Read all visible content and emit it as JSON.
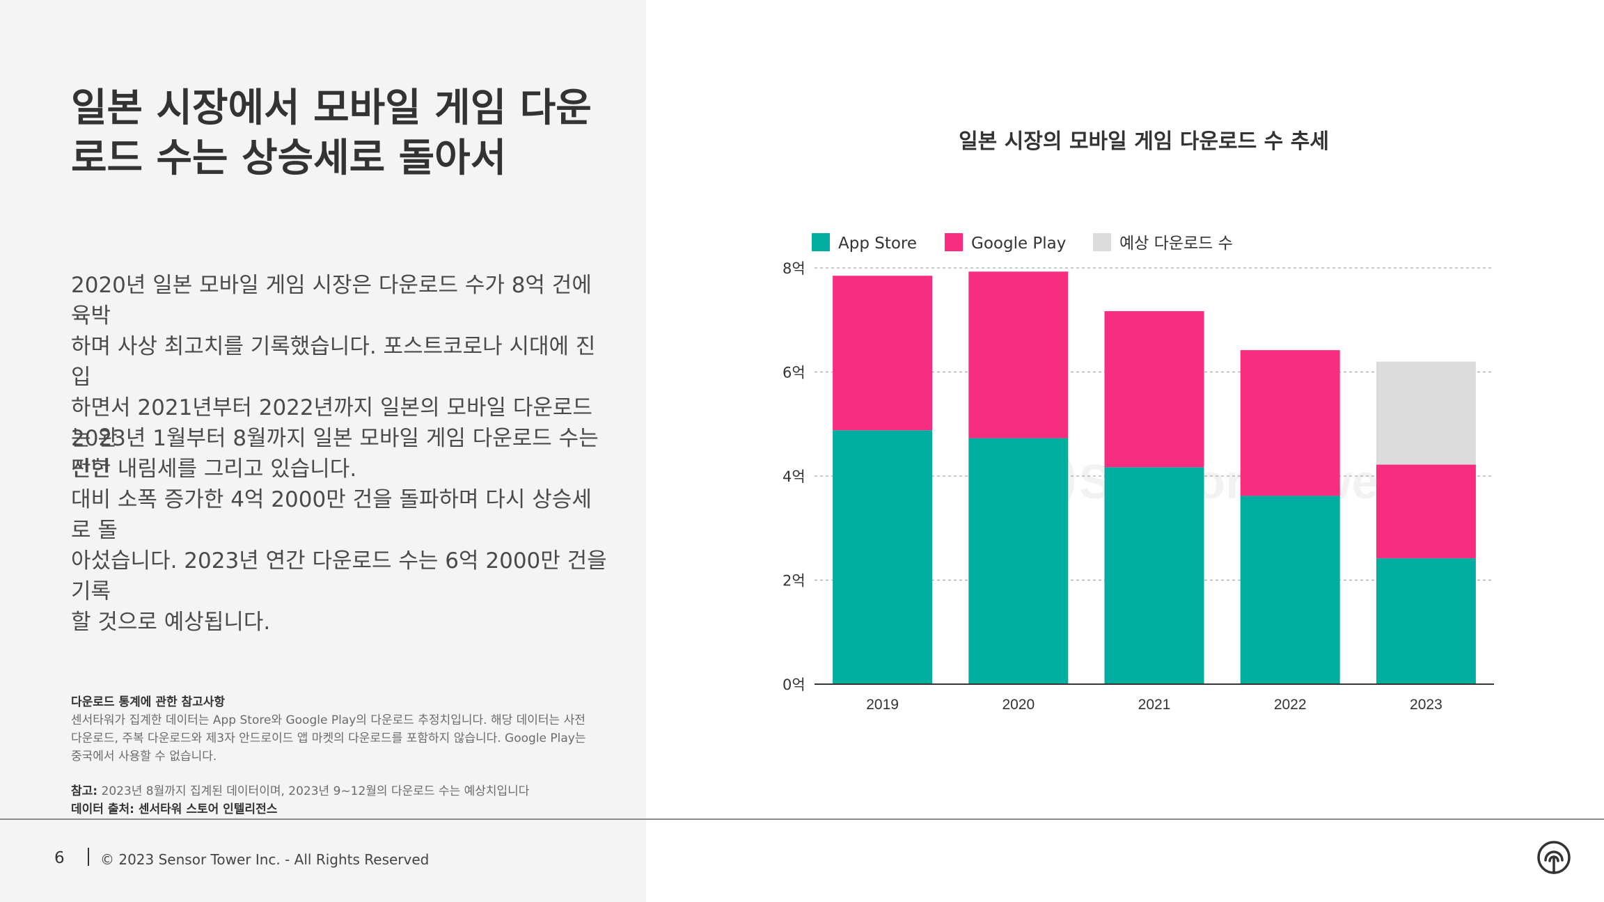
{
  "header": {
    "title_line1": "일본 시장에서 모바일 게임 다운",
    "title_line2": "로드 수는 상승세로 돌아서"
  },
  "body": {
    "para1_lines": [
      "2020년 일본 모바일 게임 시장은 다운로드 수가 8억 건에 육박",
      "하며 사상 최고치를 기록했습니다. 포스트코로나 시대에 진입",
      "하면서 2021년부터 2022년까지 일본의 모바일 다운로드는 완",
      "만한 내림세를 그리고 있습니다."
    ],
    "para2_lines": [
      "2023년 1월부터 8월까지 일본 모바일 게임 다운로드 수는 전년",
      "대비 소폭 증가한 4억 2000만 건을 돌파하며 다시 상승세로 돌",
      "아섰습니다. 2023년 연간 다운로드 수는 6억 2000만 건을 기록",
      "할 것으로 예상됩니다."
    ]
  },
  "notes": {
    "heading": "다운로드 통계에 관한 참고사항",
    "lines": [
      "센서타워가 집계한 데이터는 App Store와 Google Play의 다운로드 추정치입니다. 해당 데이터는 사전",
      "다운로드, 주복 다운로드와 제3자 안드로이드 앱 마켓의 다운로드를 포함하지 않습니다. Google Play는",
      "중국에서 사용할 수 없습니다."
    ],
    "ref_label": "참고:",
    "ref_text": " 2023년 8월까지 집계된 데이터이며, 2023년 9~12월의 다운로드 수는 예상치입니다",
    "source_label": "데이터 출처: 센서타워 스토어 인텔리전스"
  },
  "footer": {
    "page_number": "6",
    "copyright": "© 2023 Sensor Tower Inc. - All Rights Reserved"
  },
  "watermark": "Sensor Tower",
  "colors": {
    "app_store": "#00ad9f",
    "google_play": "#f72d7f",
    "forecast": "#dcdcdc",
    "left_panel": "#f4f4f4",
    "text_dark": "#333333"
  },
  "icons": [
    "sensor-tower-logo-icon"
  ],
  "chart_data": {
    "type": "bar",
    "stacked": true,
    "title": "일본 시장의 모바일 게임 다운로드 수 추세",
    "categories": [
      "2019",
      "2020",
      "2021",
      "2022",
      "2023"
    ],
    "series": [
      {
        "name": "App Store",
        "color": "#00ad9f",
        "values": [
          4.88,
          4.73,
          4.17,
          3.62,
          2.42
        ]
      },
      {
        "name": "Google Play",
        "color": "#f72d7f",
        "values": [
          2.97,
          3.2,
          3.0,
          2.8,
          1.8
        ]
      },
      {
        "name": "예상 다운로드 수",
        "color": "#dcdcdc",
        "values": [
          0,
          0,
          0,
          0,
          1.98
        ]
      }
    ],
    "yticks": [
      {
        "value": 0,
        "label": "0억"
      },
      {
        "value": 2,
        "label": "2억"
      },
      {
        "value": 4,
        "label": "4억"
      },
      {
        "value": 6,
        "label": "6억"
      },
      {
        "value": 8,
        "label": "8억"
      }
    ],
    "ylim": [
      0,
      8
    ],
    "xlabel": "",
    "ylabel": "",
    "grid": true,
    "legend_position": "top-left"
  }
}
